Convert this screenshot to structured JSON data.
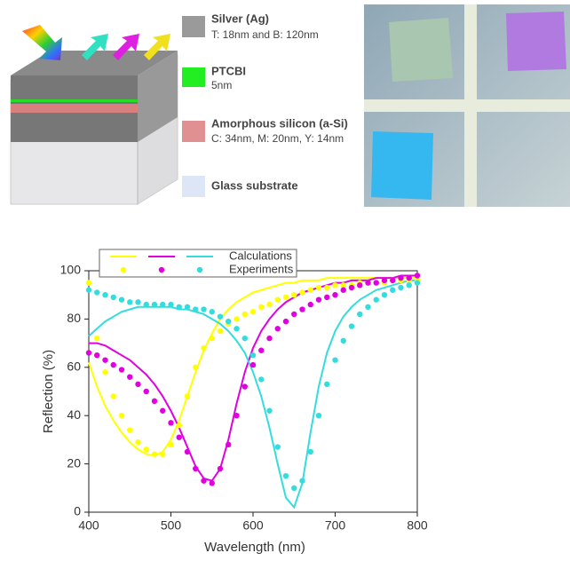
{
  "schematic": {
    "legend": [
      {
        "label": "Silver (Ag)",
        "detail": "T: 18nm and B: 120nm"
      },
      {
        "label": "PTCBI",
        "detail": "5nm"
      },
      {
        "label": "Amorphous silicon (a-Si)",
        "detail": "C: 34nm, M: 20nm, Y: 14nm"
      },
      {
        "label": "Glass substrate"
      }
    ]
  },
  "chart_data": {
    "type": "line",
    "xlabel": "Wavelength (nm)",
    "ylabel": "Reflection (%)",
    "xlim": [
      400,
      800
    ],
    "xticks": [
      400,
      500,
      600,
      700,
      800
    ],
    "ylim": [
      0,
      100
    ],
    "yticks": [
      0,
      20,
      40,
      60,
      80,
      100
    ],
    "legend": [
      "Calculations",
      "Experiments"
    ],
    "x": [
      400,
      410,
      420,
      430,
      440,
      450,
      460,
      470,
      480,
      490,
      500,
      510,
      520,
      530,
      540,
      550,
      560,
      570,
      580,
      590,
      600,
      610,
      620,
      630,
      640,
      650,
      660,
      670,
      680,
      690,
      700,
      710,
      720,
      730,
      740,
      750,
      760,
      770,
      780,
      790,
      800
    ],
    "series": [
      {
        "color": "#ffff00",
        "style": "line",
        "values": [
          62,
          52,
          44,
          38,
          33,
          29,
          26,
          24,
          23.5,
          25,
          30,
          38,
          48,
          58,
          67,
          74,
          80,
          84,
          87,
          89,
          91,
          92,
          93,
          94,
          95,
          95,
          96,
          96,
          96,
          97,
          97,
          97,
          97,
          97,
          97,
          97,
          97,
          97,
          97,
          97,
          97
        ]
      },
      {
        "color": "#e000e0",
        "style": "line",
        "values": [
          70,
          70,
          69,
          67,
          65,
          63,
          60,
          57,
          53,
          48,
          42,
          35,
          27,
          19,
          14,
          13,
          18,
          30,
          45,
          58,
          68,
          75,
          80,
          84,
          87,
          89,
          91,
          92,
          93,
          94,
          95,
          95,
          96,
          96,
          96,
          97,
          97,
          97,
          98,
          98,
          98
        ]
      },
      {
        "color": "#33dddd",
        "style": "line",
        "values": [
          73,
          76,
          79,
          81,
          83,
          84,
          85,
          85,
          85,
          85,
          85,
          84,
          84,
          83,
          82,
          80,
          78,
          75,
          71,
          66,
          58,
          48,
          35,
          20,
          6,
          2,
          12,
          33,
          52,
          66,
          75,
          81,
          85,
          88,
          90,
          92,
          93,
          94,
          95,
          96,
          96
        ]
      },
      {
        "color": "#ffff00",
        "style": "dots",
        "values": [
          95,
          72,
          58,
          48,
          40,
          34,
          29,
          26,
          24,
          24,
          28,
          36,
          48,
          60,
          68,
          72,
          75,
          78,
          80,
          82,
          83,
          85,
          86,
          88,
          89,
          90,
          91,
          92,
          93,
          93,
          94,
          94,
          94,
          95,
          95,
          95,
          95,
          96,
          96,
          96,
          96
        ]
      },
      {
        "color": "#e000e0",
        "style": "dots",
        "values": [
          66,
          65,
          63,
          61,
          59,
          56,
          53,
          50,
          46,
          42,
          37,
          31,
          25,
          18,
          13,
          12,
          18,
          28,
          40,
          52,
          61,
          67,
          72,
          76,
          79,
          82,
          84,
          86,
          88,
          89,
          90,
          92,
          93,
          94,
          95,
          95,
          96,
          96,
          97,
          97,
          98
        ]
      },
      {
        "color": "#33dddd",
        "style": "dots",
        "values": [
          92,
          91,
          90,
          89,
          88,
          87,
          87,
          86,
          86,
          86,
          86,
          85,
          85,
          84,
          84,
          83,
          81,
          79,
          76,
          72,
          65,
          55,
          42,
          27,
          15,
          10,
          13,
          25,
          40,
          53,
          63,
          71,
          77,
          82,
          85,
          88,
          90,
          92,
          93,
          94,
          95
        ]
      }
    ]
  }
}
